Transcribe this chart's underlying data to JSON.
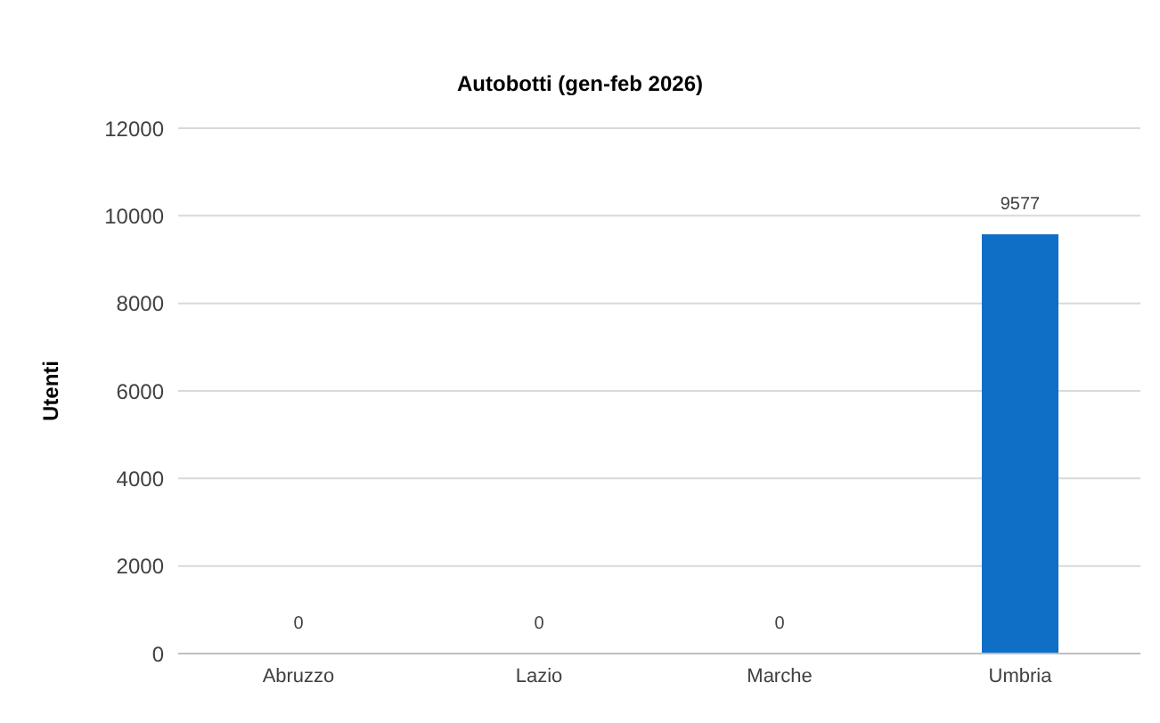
{
  "chart_data": {
    "type": "bar",
    "title": "Autobotti (gen-feb 2026)",
    "ylabel": "Utenti",
    "categories": [
      "Abruzzo",
      "Lazio",
      "Marche",
      "Umbria"
    ],
    "values": [
      0,
      0,
      0,
      9577
    ],
    "color": "#0f6fc6",
    "ylim": [
      0,
      12000
    ],
    "yticks": [
      0,
      2000,
      4000,
      6000,
      8000,
      10000,
      12000
    ],
    "grid": "y",
    "data_labels": true,
    "legend": false
  }
}
